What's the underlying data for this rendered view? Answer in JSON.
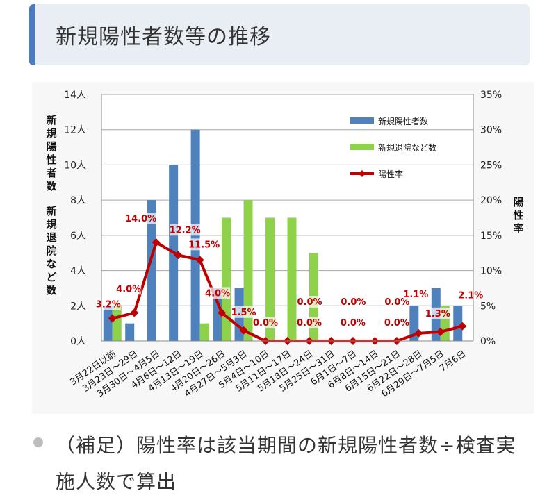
{
  "header": {
    "title": "新規陽性者数等の推移"
  },
  "chart_data": {
    "type": "bar",
    "categories": [
      "3月22日以前",
      "3月23日〜29日",
      "3月30日〜4月5日",
      "4月6日〜12日",
      "4月13日〜19日",
      "4月20日〜26日",
      "4月27日〜5月3日",
      "5月4日〜10日",
      "5月11日〜17日",
      "5月18日〜24日",
      "5月25日〜31日",
      "6月1日〜7日",
      "6月8日〜14日",
      "6月15日〜21日",
      "6月22日〜28日",
      "6月29日〜7月5日",
      "7月6日"
    ],
    "series": [
      {
        "name": "新規陽性者数",
        "type": "bar",
        "axis": "left",
        "color": "#4f81bd",
        "values": [
          2,
          1,
          8,
          10,
          12,
          3,
          3,
          0,
          0,
          0,
          0,
          0,
          0,
          0,
          2,
          3,
          2
        ]
      },
      {
        "name": "新規退院など数",
        "type": "bar",
        "axis": "left",
        "color": "#8ed14b",
        "values": [
          2,
          0,
          0,
          0,
          1,
          7,
          8,
          7,
          7,
          5,
          0,
          0,
          0,
          0,
          0,
          2,
          0
        ]
      },
      {
        "name": "陽性率",
        "type": "line",
        "axis": "right",
        "color": "#c00000",
        "values": [
          3.2,
          4.0,
          14.0,
          12.2,
          11.5,
          4.0,
          1.5,
          0.0,
          0.0,
          0.0,
          0.0,
          0.0,
          0.0,
          0.0,
          1.1,
          1.3,
          2.1
        ],
        "labels": [
          "3.2%",
          "4.0%",
          "14.0%",
          "12.2%",
          "11.5%",
          "4.0%",
          "1.5%",
          "0.0%",
          "0.0%",
          "0.0%",
          "0.0%",
          "0.0%",
          "0.0%",
          "0.0%",
          "1.1%",
          "1.3%",
          "2.1%"
        ]
      }
    ],
    "y_left": {
      "label": "新規陽性者数 新規退院など数",
      "ticks": [
        "0人",
        "2人",
        "4人",
        "6人",
        "8人",
        "10人",
        "12人",
        "14人"
      ],
      "range": [
        0,
        14
      ]
    },
    "y_right": {
      "label": "陽性率",
      "ticks": [
        "0%",
        "5%",
        "10%",
        "15%",
        "20%",
        "25%",
        "30%",
        "35%"
      ],
      "range": [
        0,
        35
      ]
    },
    "grid": true,
    "legend_position": "top-right"
  },
  "note": {
    "text": "（補足）陽性率は該当期間の新規陽性者数÷検査実施人数で算出"
  }
}
